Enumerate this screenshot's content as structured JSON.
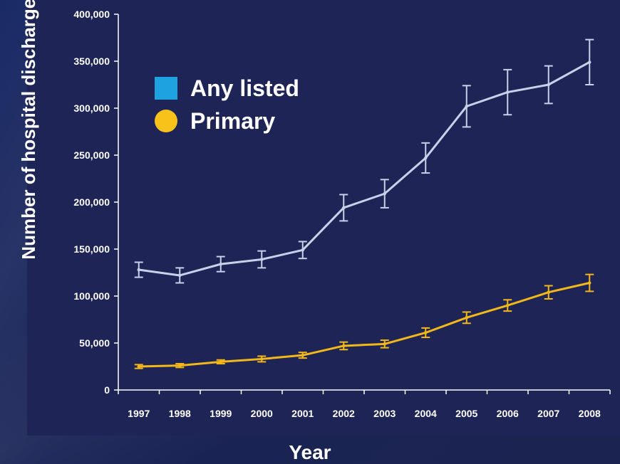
{
  "colors": {
    "any_listed": "#c7d2ea",
    "primary": "#f2b81a",
    "legend_any_listed": "#1fa3e0",
    "legend_primary": "#f7c21a",
    "axis": "#ffffff",
    "panel": "#1e2455"
  },
  "chart_data": {
    "type": "line",
    "xlabel": "Year",
    "ylabel": "Number of hospital discharges",
    "ylim": [
      0,
      400000
    ],
    "yticks": [
      "0",
      "50,000",
      "100,000",
      "150,000",
      "200,000",
      "250,000",
      "300,000",
      "350,000",
      "400,000"
    ],
    "categories": [
      "1997",
      "1998",
      "1999",
      "2000",
      "2001",
      "2002",
      "2003",
      "2004",
      "2005",
      "2006",
      "2007",
      "2008"
    ],
    "legend_position": "top-left",
    "grid": false,
    "series": [
      {
        "name": "Any listed",
        "values": [
          128000,
          122000,
          134000,
          139000,
          149000,
          194000,
          209000,
          247000,
          302000,
          317000,
          325000,
          349000
        ],
        "error": [
          8000,
          8000,
          8000,
          9000,
          9000,
          14000,
          15000,
          16000,
          22000,
          24000,
          20000,
          24000
        ]
      },
      {
        "name": "Primary",
        "values": [
          25000,
          26000,
          30000,
          33000,
          37000,
          47000,
          49000,
          61000,
          77000,
          90000,
          104000,
          114000
        ],
        "error": [
          2000,
          2000,
          2000,
          3000,
          3000,
          4000,
          4000,
          5000,
          6000,
          6000,
          7000,
          9000
        ]
      }
    ]
  }
}
